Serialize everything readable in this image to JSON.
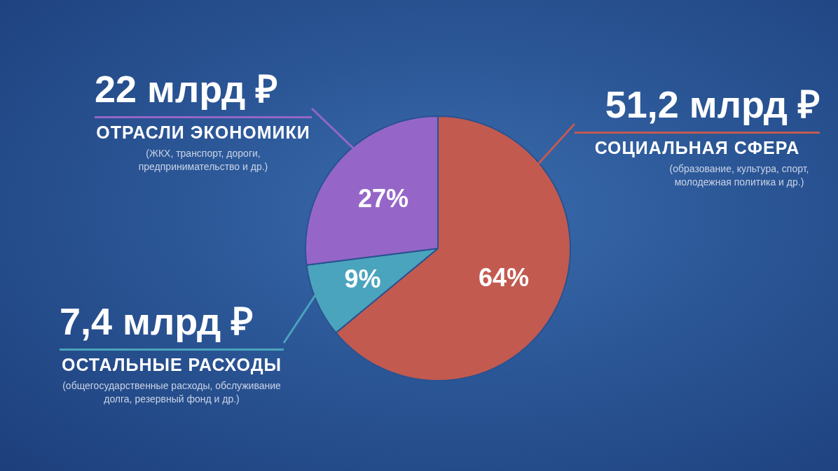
{
  "chart_data": {
    "type": "pie",
    "categories": [
      "СОЦИАЛЬНАЯ СФЕРА",
      "ОСТАЛЬНЫЕ РАСХОДЫ",
      "ОТРАСЛИ ЭКОНОМИКИ"
    ],
    "values": [
      64,
      9,
      27
    ],
    "colors": [
      "#c25a50",
      "#4ba4bd",
      "#9566c8"
    ],
    "value_labels": [
      "64%",
      "9%",
      "27%"
    ],
    "annotations": [
      "51,2 млрд ₽",
      "(образование, культура, спорт, молодежная политика и др.)",
      "7,4 млрд ₽",
      "(общегосударственные расходы, обслуживание долга, резервный фонд и др.)",
      "22 млрд ₽",
      "(ЖКХ, транспорт, дороги, предпринимательство и др.)"
    ],
    "legend": false
  }
}
